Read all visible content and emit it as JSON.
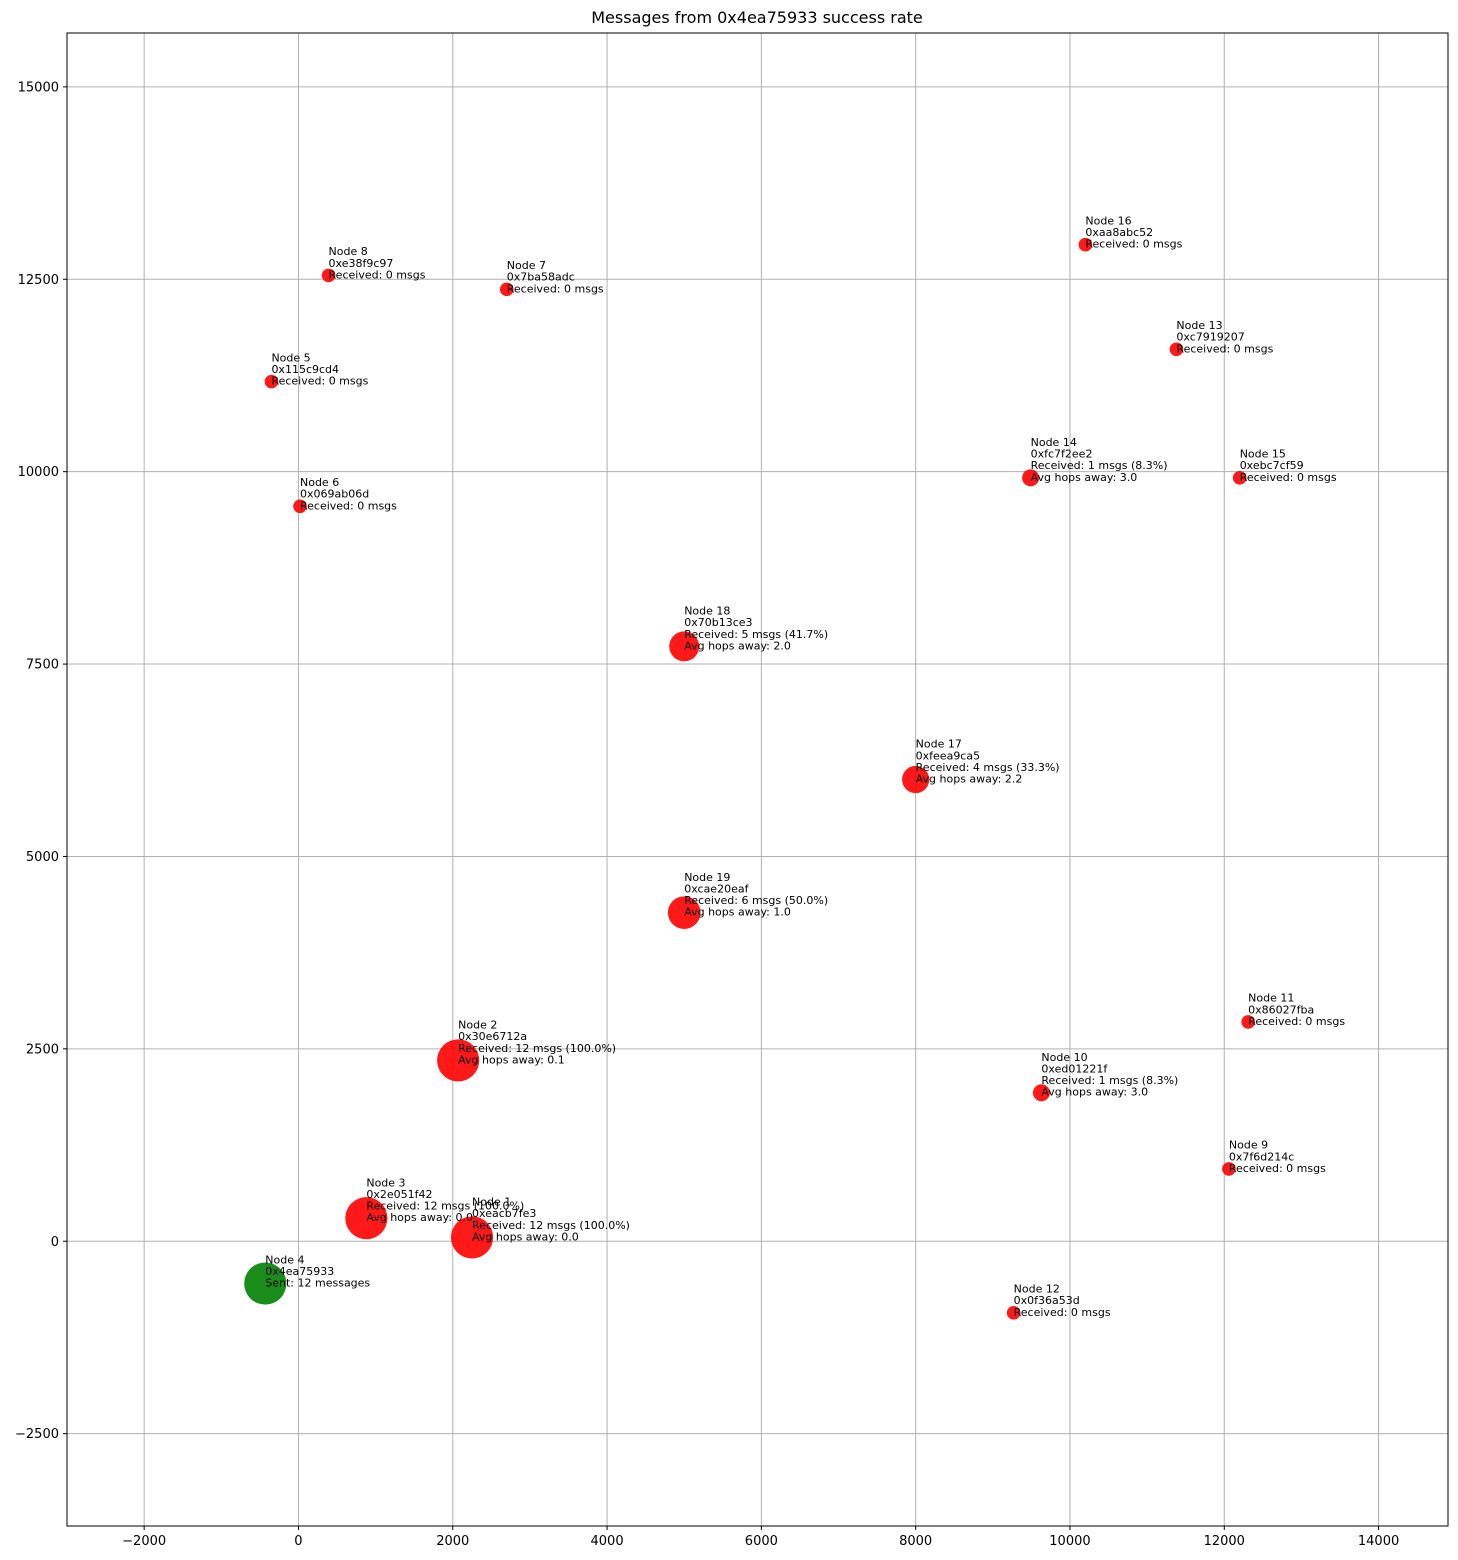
{
  "chart_data": {
    "type": "scatter",
    "title": "Messages from 0x4ea75933 success rate",
    "xlabel": "",
    "ylabel": "",
    "xlim": [
      -3000,
      14900
    ],
    "ylim": [
      -3700,
      15700
    ],
    "xticks": [
      -2000,
      0,
      2000,
      4000,
      6000,
      8000,
      10000,
      12000,
      14000
    ],
    "xtick_labels": [
      "−2000",
      "0",
      "2000",
      "4000",
      "6000",
      "8000",
      "10000",
      "12000",
      "14000"
    ],
    "yticks": [
      -2500,
      0,
      2500,
      5000,
      7500,
      10000,
      12500,
      15000
    ],
    "ytick_labels": [
      "−2500",
      "0",
      "2500",
      "5000",
      "7500",
      "10000",
      "12500",
      "15000"
    ],
    "grid": true,
    "colors": {
      "sender": "#008000",
      "receiver": "#ff0000"
    },
    "points": [
      {
        "x": 2250,
        "y": 50,
        "size": 3.1,
        "role": "receiver",
        "lines": [
          "Node 1",
          "0xeacb7fe3",
          "Received: 12 msgs (100.0%)",
          "Avg hops away: 0.0"
        ]
      },
      {
        "x": 2070,
        "y": 2350,
        "size": 3.1,
        "role": "receiver",
        "lines": [
          "Node 2",
          "0x30e6712a",
          "Received: 12 msgs (100.0%)",
          "Avg hops away: 0.1"
        ]
      },
      {
        "x": 880,
        "y": 300,
        "size": 3.1,
        "role": "receiver",
        "lines": [
          "Node 3",
          "0x2e051f42",
          "Received: 12 msgs (100.0%)",
          "Avg hops away: 0.0"
        ]
      },
      {
        "x": -430,
        "y": -550,
        "size": 3.1,
        "role": "sender",
        "lines": [
          "Node 4",
          "0x4ea75933",
          "Sent: 12 messages"
        ]
      },
      {
        "x": -350,
        "y": 11170,
        "size": 1.0,
        "role": "receiver",
        "lines": [
          "Node 5",
          "0x115c9cd4",
          "Received: 0 msgs"
        ]
      },
      {
        "x": 20,
        "y": 9550,
        "size": 1.0,
        "role": "receiver",
        "lines": [
          "Node 6",
          "0x069ab06d",
          "Received: 0 msgs"
        ]
      },
      {
        "x": 2700,
        "y": 12370,
        "size": 1.0,
        "role": "receiver",
        "lines": [
          "Node 7",
          "0x7ba58adc",
          "Received: 0 msgs"
        ]
      },
      {
        "x": 390,
        "y": 12550,
        "size": 1.0,
        "role": "receiver",
        "lines": [
          "Node 8",
          "0xe38f9c97",
          "Received: 0 msgs"
        ]
      },
      {
        "x": 12060,
        "y": 940,
        "size": 1.0,
        "role": "receiver",
        "lines": [
          "Node 9",
          "0x7f6d214c",
          "Received: 0 msgs"
        ]
      },
      {
        "x": 9630,
        "y": 1930,
        "size": 1.25,
        "role": "receiver",
        "lines": [
          "Node 10",
          "0xed01221f",
          "Received: 1 msgs (8.3%)",
          "Avg hops away: 3.0"
        ]
      },
      {
        "x": 12310,
        "y": 2850,
        "size": 1.0,
        "role": "receiver",
        "lines": [
          "Node 11",
          "0x86027fba",
          "Received: 0 msgs"
        ]
      },
      {
        "x": 9270,
        "y": -930,
        "size": 1.0,
        "role": "receiver",
        "lines": [
          "Node 12",
          "0x0f36a53d",
          "Received: 0 msgs"
        ]
      },
      {
        "x": 11380,
        "y": 11590,
        "size": 1.0,
        "role": "receiver",
        "lines": [
          "Node 13",
          "0xc7919207",
          "Received: 0 msgs"
        ]
      },
      {
        "x": 9490,
        "y": 9920,
        "size": 1.25,
        "role": "receiver",
        "lines": [
          "Node 14",
          "0xfc7f2ee2",
          "Received: 1 msgs (8.3%)",
          "Avg hops away: 3.0"
        ]
      },
      {
        "x": 12200,
        "y": 9920,
        "size": 1.0,
        "role": "receiver",
        "lines": [
          "Node 15",
          "0xebc7cf59",
          "Received: 0 msgs"
        ]
      },
      {
        "x": 10200,
        "y": 12950,
        "size": 1.0,
        "role": "receiver",
        "lines": [
          "Node 16",
          "0xaa8abc52",
          "Received: 0 msgs"
        ]
      },
      {
        "x": 8000,
        "y": 6000,
        "size": 2.0,
        "role": "receiver",
        "lines": [
          "Node 17",
          "0xfeea9ca5",
          "Received: 4 msgs (33.3%)",
          "Avg hops away: 2.2"
        ]
      },
      {
        "x": 5000,
        "y": 7730,
        "size": 2.2,
        "role": "receiver",
        "lines": [
          "Node 18",
          "0x70b13ce3",
          "Received: 5 msgs (41.7%)",
          "Avg hops away: 2.0"
        ]
      },
      {
        "x": 5000,
        "y": 4270,
        "size": 2.4,
        "role": "receiver",
        "lines": [
          "Node 19",
          "0xcae20eaf",
          "Received: 6 msgs (50.0%)",
          "Avg hops away: 1.0"
        ]
      }
    ]
  }
}
